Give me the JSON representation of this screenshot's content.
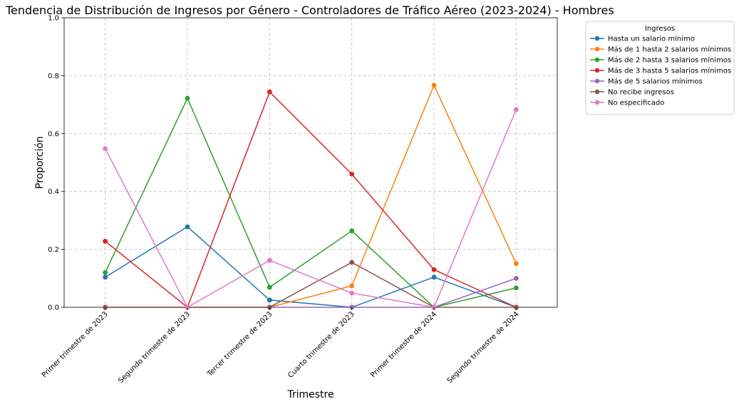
{
  "chart_data": {
    "type": "line",
    "title": "Tendencia de Distribución de Ingresos por Género - Controladores de Tráfico Aéreo (2023-2024) - Hombres",
    "xlabel": "Trimestre",
    "ylabel": "Proporción",
    "ylim": [
      0,
      1
    ],
    "yticks": [
      "0.0",
      "0.2",
      "0.4",
      "0.6",
      "0.8",
      "1.0"
    ],
    "grid": true,
    "legend_title": "Ingresos",
    "legend_position": "outside-top-right",
    "categories": [
      "Primer trimestre de 2023",
      "Segundo trimestre de 2023",
      "Tercer trimestre de 2023",
      "Cuarto trimestre de 2023",
      "Primer trimestre de 2024",
      "Segundo trimestre de 2024"
    ],
    "series": [
      {
        "name": "Hasta un salario mínimo",
        "color": "#1f77b4",
        "values": [
          0.104,
          0.278,
          0.025,
          0.0,
          0.104,
          0.0
        ]
      },
      {
        "name": "Más de 1 hasta 2 salarios mínimos",
        "color": "#ff7f0e",
        "values": [
          0.0,
          0.0,
          0.0,
          0.074,
          0.767,
          0.151
        ]
      },
      {
        "name": "Más de 2 hasta 3 salarios mínimos",
        "color": "#2ca02c",
        "values": [
          0.12,
          0.722,
          0.069,
          0.264,
          0.0,
          0.067
        ]
      },
      {
        "name": "Más de 3 hasta 5 salarios mínimos",
        "color": "#d62728",
        "values": [
          0.228,
          0.0,
          0.744,
          0.46,
          0.13,
          0.0
        ]
      },
      {
        "name": "Más de 5 salarios mínimos",
        "color": "#9467bd",
        "values": [
          0.0,
          0.0,
          0.0,
          0.0,
          0.0,
          0.1
        ]
      },
      {
        "name": "No recibe ingresos",
        "color": "#8c564b",
        "values": [
          0.0,
          0.0,
          0.0,
          0.155,
          0.0,
          0.0
        ]
      },
      {
        "name": "No especificado",
        "color": "#e377c2",
        "values": [
          0.548,
          0.0,
          0.162,
          0.049,
          0.0,
          0.683
        ]
      }
    ]
  }
}
